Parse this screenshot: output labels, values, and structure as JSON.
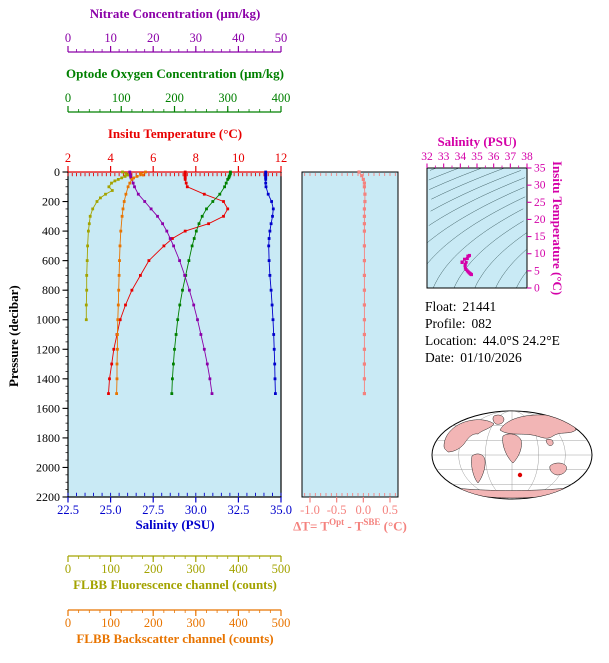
{
  "colors": {
    "nitrate": "#8b00a8",
    "oxygen": "#008000",
    "temperature": "#e80000",
    "salinity": "#0000cc",
    "delta_t": "#f4827e",
    "ts": "#d400a8",
    "fluorescence": "#a3a300",
    "backscatter": "#e87400",
    "plot_bg": "#c9eaf5",
    "map_land": "#f2b5b5",
    "contour": "#3e5f63"
  },
  "axes": {
    "nitrate": {
      "label": "Nitrate Concentration (μm/kg)",
      "range": [
        0,
        50
      ],
      "tick_values": [
        0,
        10,
        20,
        30,
        40,
        50
      ],
      "tick_labels": [
        "0",
        "10",
        "20",
        "30",
        "40",
        "50"
      ]
    },
    "oxygen": {
      "label": "Optode Oxygen Concentration (μm/kg)",
      "range": [
        0,
        400
      ],
      "tick_values": [
        0,
        100,
        200,
        300,
        400
      ],
      "tick_labels": [
        "0",
        "100",
        "200",
        "300",
        "400"
      ]
    },
    "temperature": {
      "label": "Insitu Temperature (°C)",
      "range": [
        2,
        12
      ],
      "tick_values": [
        2,
        4,
        6,
        8,
        10,
        12
      ],
      "tick_labels": [
        "2",
        "4",
        "6",
        "8",
        "10",
        "12"
      ]
    },
    "pressure": {
      "label": "Pressure (decibar)",
      "range": [
        0,
        2200
      ],
      "tick_values": [
        0,
        200,
        400,
        600,
        800,
        1000,
        1200,
        1400,
        1600,
        1800,
        2000,
        2200
      ],
      "tick_labels": [
        "0",
        "200",
        "400",
        "600",
        "800",
        "1000",
        "1200",
        "1400",
        "1600",
        "1800",
        "2000",
        "2200"
      ]
    },
    "salinity": {
      "label": "Salinity (PSU)",
      "range": [
        22.5,
        35.0
      ],
      "tick_values": [
        22.5,
        25.0,
        27.5,
        30.0,
        32.5,
        35.0
      ],
      "tick_labels": [
        "22.5",
        "25.0",
        "27.5",
        "30.0",
        "32.5",
        "35.0"
      ]
    },
    "delta_t": {
      "label_pre": "ΔT= T",
      "sup1": "Opt",
      "mid": " - T",
      "sup2": "SBE",
      "post": " (°C)",
      "range": [
        -1.15,
        0.65
      ],
      "tick_values": [
        -1.0,
        -0.5,
        0.0,
        0.5
      ],
      "tick_labels": [
        "-1.0",
        "-0.5",
        "0.0",
        "0.5"
      ]
    },
    "ts_salinity": {
      "label": "Salinity (PSU)",
      "range": [
        32,
        38
      ],
      "tick_values": [
        32,
        33,
        34,
        35,
        36,
        37,
        38
      ],
      "tick_labels": [
        "32",
        "33",
        "34",
        "35",
        "36",
        "37",
        "38"
      ]
    },
    "ts_temperature": {
      "label": "Insitu Temperature (°C)",
      "range": [
        0,
        35
      ],
      "tick_values": [
        0,
        5,
        10,
        15,
        20,
        25,
        30,
        35
      ],
      "tick_labels": [
        "0",
        "5",
        "10",
        "15",
        "20",
        "25",
        "30",
        "35"
      ]
    },
    "fluorescence": {
      "label": "FLBB Fluorescence channel (counts)",
      "range": [
        0,
        500
      ],
      "tick_values": [
        0,
        100,
        200,
        300,
        400,
        500
      ],
      "tick_labels": [
        "0",
        "100",
        "200",
        "300",
        "400",
        "500"
      ]
    },
    "backscatter": {
      "label": "FLBB Backscatter channel (counts)",
      "range": [
        0,
        500
      ],
      "tick_values": [
        0,
        100,
        200,
        300,
        400,
        500
      ],
      "tick_labels": [
        "0",
        "100",
        "200",
        "300",
        "400",
        "500"
      ]
    }
  },
  "info": {
    "lines": [
      {
        "label": "Float:",
        "value": "21441"
      },
      {
        "label": "Profile:",
        "value": "082"
      },
      {
        "label": "Location:",
        "value": "44.0°S  24.2°E"
      },
      {
        "label": "Date:",
        "value": "01/10/2026"
      }
    ]
  },
  "chart_data": [
    {
      "id": "profiles",
      "type": "line",
      "title": "Multi-parameter float profiles vs pressure",
      "ylabel": "Pressure (decibar)",
      "ylim": [
        0,
        2200
      ],
      "grid": false,
      "legend": "none",
      "series": [
        {
          "name": "Insitu Temperature (°C)",
          "axis": "temperature",
          "pressure": [
            0,
            10,
            20,
            30,
            40,
            50,
            75,
            100,
            150,
            200,
            250,
            300,
            350,
            400,
            450,
            500,
            600,
            700,
            800,
            900,
            1000,
            1100,
            1200,
            1300,
            1400,
            1500
          ],
          "values": [
            7.5,
            7.5,
            7.5,
            7.5,
            7.5,
            7.5,
            7.55,
            7.6,
            8.4,
            9.3,
            9.5,
            9.3,
            8.6,
            7.5,
            6.9,
            6.5,
            5.8,
            5.4,
            5.0,
            4.7,
            4.45,
            4.3,
            4.15,
            4.05,
            3.95,
            3.9
          ]
        },
        {
          "name": "Salinity (PSU)",
          "axis": "salinity",
          "pressure": [
            0,
            10,
            20,
            30,
            40,
            50,
            75,
            100,
            150,
            200,
            250,
            300,
            350,
            400,
            450,
            500,
            600,
            700,
            800,
            900,
            1000,
            1100,
            1200,
            1300,
            1400,
            1500
          ],
          "values": [
            34.1,
            34.1,
            34.1,
            34.1,
            34.1,
            34.1,
            34.1,
            34.12,
            34.25,
            34.45,
            34.55,
            34.5,
            34.42,
            34.35,
            34.3,
            34.28,
            34.3,
            34.35,
            34.42,
            34.48,
            34.53,
            34.57,
            34.6,
            34.63,
            34.65,
            34.67
          ]
        },
        {
          "name": "Optode Oxygen Concentration (μm/kg)",
          "axis": "oxygen",
          "pressure": [
            0,
            10,
            20,
            30,
            40,
            50,
            75,
            100,
            150,
            200,
            250,
            300,
            350,
            400,
            450,
            500,
            600,
            700,
            800,
            900,
            1000,
            1100,
            1200,
            1300,
            1400,
            1500
          ],
          "values": [
            305,
            305,
            304,
            303,
            302,
            300,
            297,
            294,
            285,
            272,
            260,
            252,
            246,
            241,
            237,
            233,
            227,
            221,
            215,
            210,
            206,
            203,
            200,
            198,
            196,
            195
          ]
        },
        {
          "name": "Nitrate Concentration (μm/kg)",
          "axis": "nitrate",
          "pressure": [
            0,
            10,
            20,
            30,
            40,
            50,
            75,
            100,
            150,
            200,
            250,
            300,
            350,
            400,
            450,
            500,
            600,
            700,
            800,
            900,
            1000,
            1100,
            1200,
            1300,
            1400,
            1500
          ],
          "values": [
            14.5,
            14.5,
            14.6,
            14.7,
            14.8,
            15.0,
            15.3,
            15.6,
            16.5,
            18.0,
            19.5,
            21.0,
            22.2,
            23.2,
            24.0,
            24.8,
            26.2,
            27.4,
            28.5,
            29.5,
            30.4,
            31.2,
            32.0,
            32.7,
            33.3,
            33.8
          ]
        },
        {
          "name": "FLBB Fluorescence channel (counts)",
          "axis": "fluorescence",
          "pressure": [
            0,
            10,
            20,
            30,
            40,
            50,
            60,
            75,
            100,
            125,
            150,
            175,
            200,
            250,
            300,
            350,
            400,
            500,
            600,
            700,
            800,
            900,
            1000
          ],
          "values": [
            128,
            136,
            140,
            134,
            126,
            118,
            110,
            102,
            96,
            104,
            88,
            76,
            68,
            58,
            52,
            50,
            48,
            46,
            45,
            44,
            44,
            43,
            43
          ]
        },
        {
          "name": "FLBB Backscatter channel (counts)",
          "axis": "backscatter",
          "pressure": [
            0,
            10,
            20,
            30,
            40,
            50,
            75,
            100,
            150,
            200,
            250,
            300,
            400,
            500,
            600,
            700,
            800,
            900,
            1000,
            1100,
            1200,
            1300,
            1400,
            1500
          ],
          "values": [
            182,
            170,
            176,
            162,
            154,
            150,
            145,
            141,
            136,
            132,
            129,
            127,
            124,
            122,
            121,
            120,
            119,
            118,
            117,
            116,
            116,
            115,
            115,
            114
          ]
        }
      ]
    },
    {
      "id": "delta_t",
      "type": "line",
      "title": "Temperature difference Optode minus SBE",
      "xlabel": "ΔT= TOpt - TSBE (°C)",
      "xlim": [
        -1.15,
        0.65
      ],
      "ylim": [
        0,
        2200
      ],
      "series": [
        {
          "name": "ΔT",
          "axis": "delta_t",
          "pressure": [
            0,
            25,
            50,
            75,
            100,
            150,
            200,
            250,
            300,
            350,
            400,
            500,
            600,
            700,
            800,
            900,
            1000,
            1100,
            1200,
            1300,
            1400,
            1500
          ],
          "values": [
            -0.08,
            -0.03,
            0.0,
            0.02,
            0.02,
            0.03,
            0.03,
            0.02,
            0.02,
            0.02,
            0.02,
            0.02,
            0.02,
            0.02,
            0.02,
            0.02,
            0.02,
            0.02,
            0.02,
            0.02,
            0.02,
            0.02
          ]
        }
      ]
    },
    {
      "id": "ts_diagram",
      "type": "scatter",
      "title": "T-S diagram with density contours",
      "xlabel": "Salinity (PSU)",
      "xlim": [
        32,
        38
      ],
      "ylabel": "Insitu Temperature (°C)",
      "ylim": [
        0,
        35
      ],
      "contour_levels": [
        18,
        19,
        20,
        21,
        22,
        23,
        24,
        25,
        26,
        27,
        28,
        29,
        30
      ],
      "points": {
        "salinity": [
          34.1,
          34.1,
          34.1,
          34.1,
          34.1,
          34.1,
          34.1,
          34.12,
          34.25,
          34.45,
          34.55,
          34.5,
          34.42,
          34.35,
          34.3,
          34.28,
          34.3,
          34.35,
          34.42,
          34.48,
          34.53,
          34.57,
          34.6,
          34.63,
          34.65,
          34.67
        ],
        "temperature": [
          7.5,
          7.5,
          7.5,
          7.5,
          7.5,
          7.5,
          7.55,
          7.6,
          8.4,
          9.3,
          9.5,
          9.3,
          8.6,
          7.5,
          6.9,
          6.5,
          5.8,
          5.4,
          5.0,
          4.7,
          4.45,
          4.3,
          4.15,
          4.05,
          3.95,
          3.9
        ]
      }
    }
  ],
  "map": {
    "description": "world map, float position marker",
    "marker_lat_lon": "44.0S 24.2E"
  }
}
